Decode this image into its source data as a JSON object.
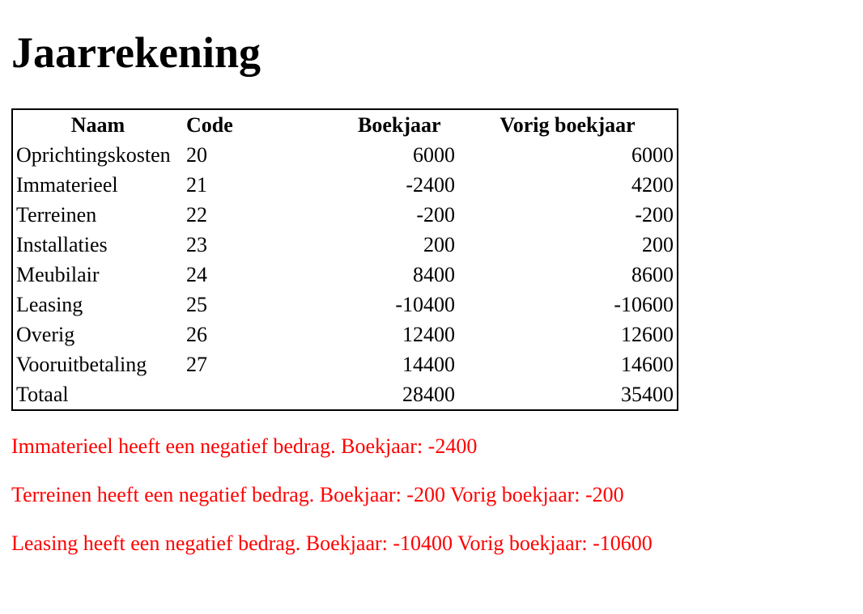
{
  "page": {
    "title": "Jaarrekening"
  },
  "table": {
    "headers": [
      "Naam",
      "Code",
      "Boekjaar",
      "Vorig boekjaar"
    ],
    "rows": [
      {
        "naam": "Oprichtingskosten",
        "code": "20",
        "boekjaar": "6000",
        "vorig": "6000"
      },
      {
        "naam": "Immaterieel",
        "code": "21",
        "boekjaar": "-2400",
        "vorig": "4200"
      },
      {
        "naam": "Terreinen",
        "code": "22",
        "boekjaar": "-200",
        "vorig": "-200"
      },
      {
        "naam": "Installaties",
        "code": "23",
        "boekjaar": "200",
        "vorig": "200"
      },
      {
        "naam": "Meubilair",
        "code": "24",
        "boekjaar": "8400",
        "vorig": "8600"
      },
      {
        "naam": "Leasing",
        "code": "25",
        "boekjaar": "-10400",
        "vorig": "-10600"
      },
      {
        "naam": "Overig",
        "code": "26",
        "boekjaar": "12400",
        "vorig": "12600"
      },
      {
        "naam": "Vooruitbetaling",
        "code": "27",
        "boekjaar": "14400",
        "vorig": "14600"
      },
      {
        "naam": "Totaal",
        "code": "",
        "boekjaar": "28400",
        "vorig": "35400"
      }
    ]
  },
  "warnings": {
    "color": "#ff0000",
    "items": [
      "Immaterieel heeft een negatief bedrag. Boekjaar: -2400",
      "Terreinen heeft een negatief bedrag. Boekjaar: -200 Vorig boekjaar: -200",
      "Leasing heeft een negatief bedrag. Boekjaar: -10400 Vorig boekjaar: -10600"
    ]
  }
}
